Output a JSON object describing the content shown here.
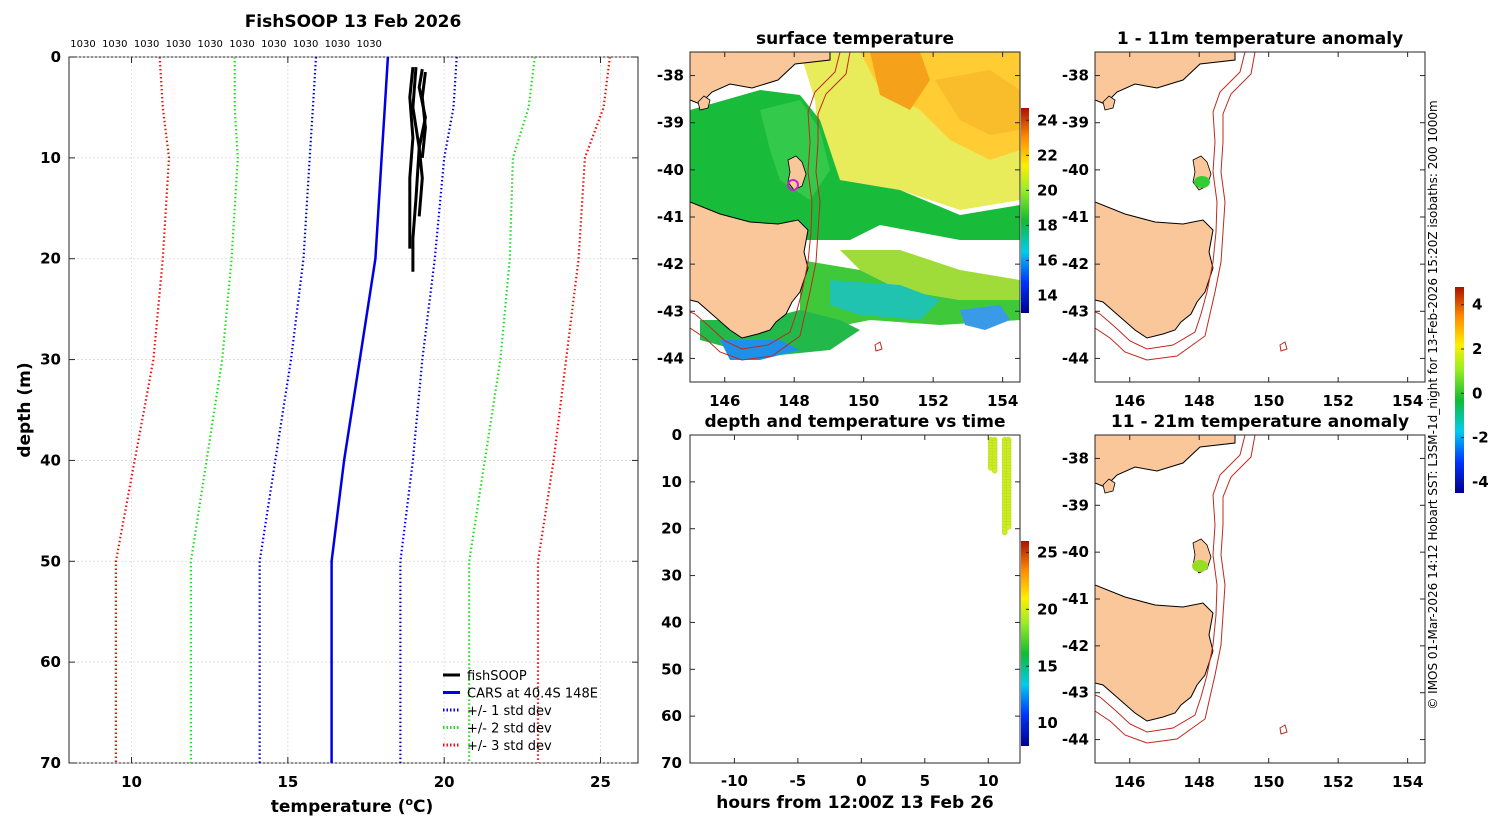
{
  "footer_text": "© IMOS 01-Mar-2026 14:12 Hobart SST: L3SM-1d_night for 13-Feb-2026 15:20Z isobaths: 200  1000m",
  "chart_data": [
    {
      "id": "profile",
      "type": "line",
      "title": "FishSOOP 13 Feb 2026",
      "xlabel_main": "temperature (",
      "xlabel_sup": "o",
      "xlabel_end": "C)",
      "ylabel": "depth (m)",
      "xlim": [
        8,
        26.2
      ],
      "ylim": [
        0,
        70
      ],
      "y_inverted": true,
      "xticks": [
        "10",
        "15",
        "20",
        "25"
      ],
      "yticks": [
        "0",
        "10",
        "20",
        "30",
        "40",
        "50",
        "60",
        "70"
      ],
      "grid": true,
      "top_labels": [
        "1030",
        "1030",
        "1030",
        "1030",
        "1030",
        "1030",
        "1030",
        "1030",
        "1030",
        "1030"
      ],
      "legend": [
        {
          "label": "fishSOOP",
          "color": "#000000",
          "style": "solid"
        },
        {
          "label": "CARS at 40.4S 148E",
          "color": "#0000e6",
          "style": "solid"
        },
        {
          "label": "+/- 1 std dev",
          "color": "#0000e6",
          "style": "dotted"
        },
        {
          "label": "+/- 2 std dev",
          "color": "#22dd22",
          "style": "dotted"
        },
        {
          "label": "+/- 3 std dev",
          "color": "#ee1111",
          "style": "dotted"
        }
      ],
      "legend_position": "bottom-right",
      "series": [
        {
          "name": "CARS mean",
          "color": "#0000e6",
          "style": "solid",
          "depth": [
            0,
            5,
            10,
            20,
            30,
            40,
            50,
            70
          ],
          "temp": [
            18.2,
            18.1,
            18.0,
            17.8,
            17.3,
            16.8,
            16.4,
            16.4
          ]
        },
        {
          "name": "+1 std",
          "color": "#0000e6",
          "style": "dotted",
          "depth": [
            0,
            5,
            10,
            20,
            30,
            40,
            50,
            70
          ],
          "temp": [
            20.4,
            20.3,
            20.0,
            19.7,
            19.3,
            19.0,
            18.6,
            18.6
          ]
        },
        {
          "name": "-1 std",
          "color": "#0000e6",
          "style": "dotted",
          "depth": [
            0,
            5,
            10,
            20,
            30,
            40,
            50,
            70
          ],
          "temp": [
            15.9,
            15.8,
            15.7,
            15.5,
            15.1,
            14.6,
            14.1,
            14.1
          ]
        },
        {
          "name": "+2 std",
          "color": "#22dd22",
          "style": "dotted",
          "depth": [
            0,
            5,
            10,
            20,
            30,
            40,
            50,
            70
          ],
          "temp": [
            22.9,
            22.7,
            22.2,
            22.1,
            21.8,
            21.3,
            20.8,
            20.8
          ]
        },
        {
          "name": "-2 std",
          "color": "#22dd22",
          "style": "dotted",
          "depth": [
            0,
            5,
            10,
            20,
            30,
            40,
            50,
            70
          ],
          "temp": [
            13.3,
            13.3,
            13.4,
            13.2,
            12.9,
            12.4,
            11.9,
            11.9
          ]
        },
        {
          "name": "+3 std",
          "color": "#ee1111",
          "style": "dotted",
          "depth": [
            0,
            5,
            10,
            20,
            30,
            40,
            50,
            70
          ],
          "temp": [
            25.3,
            25.1,
            24.5,
            24.3,
            23.9,
            23.5,
            23.0,
            23.0
          ]
        },
        {
          "name": "-3 std",
          "color": "#ee1111",
          "style": "dotted",
          "depth": [
            0,
            5,
            10,
            20,
            30,
            40,
            50,
            70
          ],
          "temp": [
            10.9,
            11.0,
            11.2,
            11.0,
            10.7,
            10.1,
            9.5,
            9.5
          ]
        },
        {
          "name": "fishSOOP cast 1",
          "color": "#000000",
          "style": "solid",
          "depth": [
            1,
            4,
            8,
            12,
            16,
            19
          ],
          "temp": [
            19.0,
            18.9,
            19.0,
            18.9,
            18.9,
            18.9
          ]
        },
        {
          "name": "fishSOOP cast 2",
          "color": "#000000",
          "style": "solid",
          "depth": [
            1,
            5,
            9,
            14,
            18,
            21.3
          ],
          "temp": [
            19.1,
            19.0,
            19.2,
            19.1,
            19.0,
            19.0
          ]
        },
        {
          "name": "fishSOOP cast 3",
          "color": "#000000",
          "style": "solid",
          "depth": [
            1.2,
            3,
            6,
            9,
            12,
            15.8
          ],
          "temp": [
            19.3,
            19.2,
            19.4,
            19.2,
            19.3,
            19.2
          ]
        },
        {
          "name": "fishSOOP cast 4",
          "color": "#000000",
          "style": "solid",
          "depth": [
            1.5,
            4,
            7,
            10
          ],
          "temp": [
            19.4,
            19.3,
            19.4,
            19.3
          ]
        }
      ]
    },
    {
      "id": "sst_map",
      "type": "heatmap",
      "title": "surface temperature",
      "xlim": [
        145,
        154.5
      ],
      "ylim": [
        -44.5,
        -37.5
      ],
      "xticks": [
        "146",
        "148",
        "150",
        "152",
        "154"
      ],
      "yticks": [
        "-38",
        "-39",
        "-40",
        "-41",
        "-42",
        "-43",
        "-44"
      ],
      "colorbar_ticks": [
        "14",
        "16",
        "18",
        "20",
        "22",
        "24"
      ],
      "colorbar_range": [
        13,
        24.7
      ]
    },
    {
      "id": "anom_map_1",
      "type": "heatmap",
      "title": "1 - 11m temperature anomaly",
      "xlim": [
        145,
        154.5
      ],
      "ylim": [
        -44.5,
        -37.5
      ],
      "xticks": [
        "146",
        "148",
        "150",
        "152",
        "154"
      ],
      "yticks": [
        "-38",
        "-39",
        "-40",
        "-41",
        "-42",
        "-43",
        "-44"
      ]
    },
    {
      "id": "anom_map_2",
      "type": "heatmap",
      "title": "11 - 21m temperature anomaly",
      "xlim": [
        145,
        154.5
      ],
      "ylim": [
        -44.5,
        -37.5
      ],
      "xticks": [
        "146",
        "148",
        "150",
        "152",
        "154"
      ],
      "yticks": [
        "-38",
        "-39",
        "-40",
        "-41",
        "-42",
        "-43",
        "-44"
      ]
    },
    {
      "id": "anom_colorbar",
      "type": "heatmap",
      "colorbar_ticks": [
        "4",
        "2",
        "0",
        "-2",
        "-4"
      ],
      "colorbar_range": [
        -4.5,
        4.8
      ]
    },
    {
      "id": "time_depth",
      "type": "scatter",
      "title": "depth and temperature vs time",
      "xlabel": "hours from 12:00Z 13 Feb 26",
      "xlim": [
        -13.5,
        12.5
      ],
      "ylim": [
        0,
        70
      ],
      "y_inverted": true,
      "xticks": [
        "-10",
        "-5",
        "0",
        "5",
        "10"
      ],
      "yticks": [
        "0",
        "10",
        "20",
        "30",
        "40",
        "50",
        "60",
        "70"
      ],
      "colorbar_ticks": [
        "10",
        "15",
        "20",
        "25"
      ],
      "colorbar_range": [
        8,
        26
      ],
      "points_color": "#ccee22",
      "casts": [
        {
          "hours": 10.2,
          "depth_min": 1,
          "depth_max": 7.5
        },
        {
          "hours": 10.5,
          "depth_min": 1,
          "depth_max": 8
        },
        {
          "hours": 11.3,
          "depth_min": 1,
          "depth_max": 21
        },
        {
          "hours": 11.6,
          "depth_min": 1,
          "depth_max": 20
        }
      ]
    }
  ]
}
